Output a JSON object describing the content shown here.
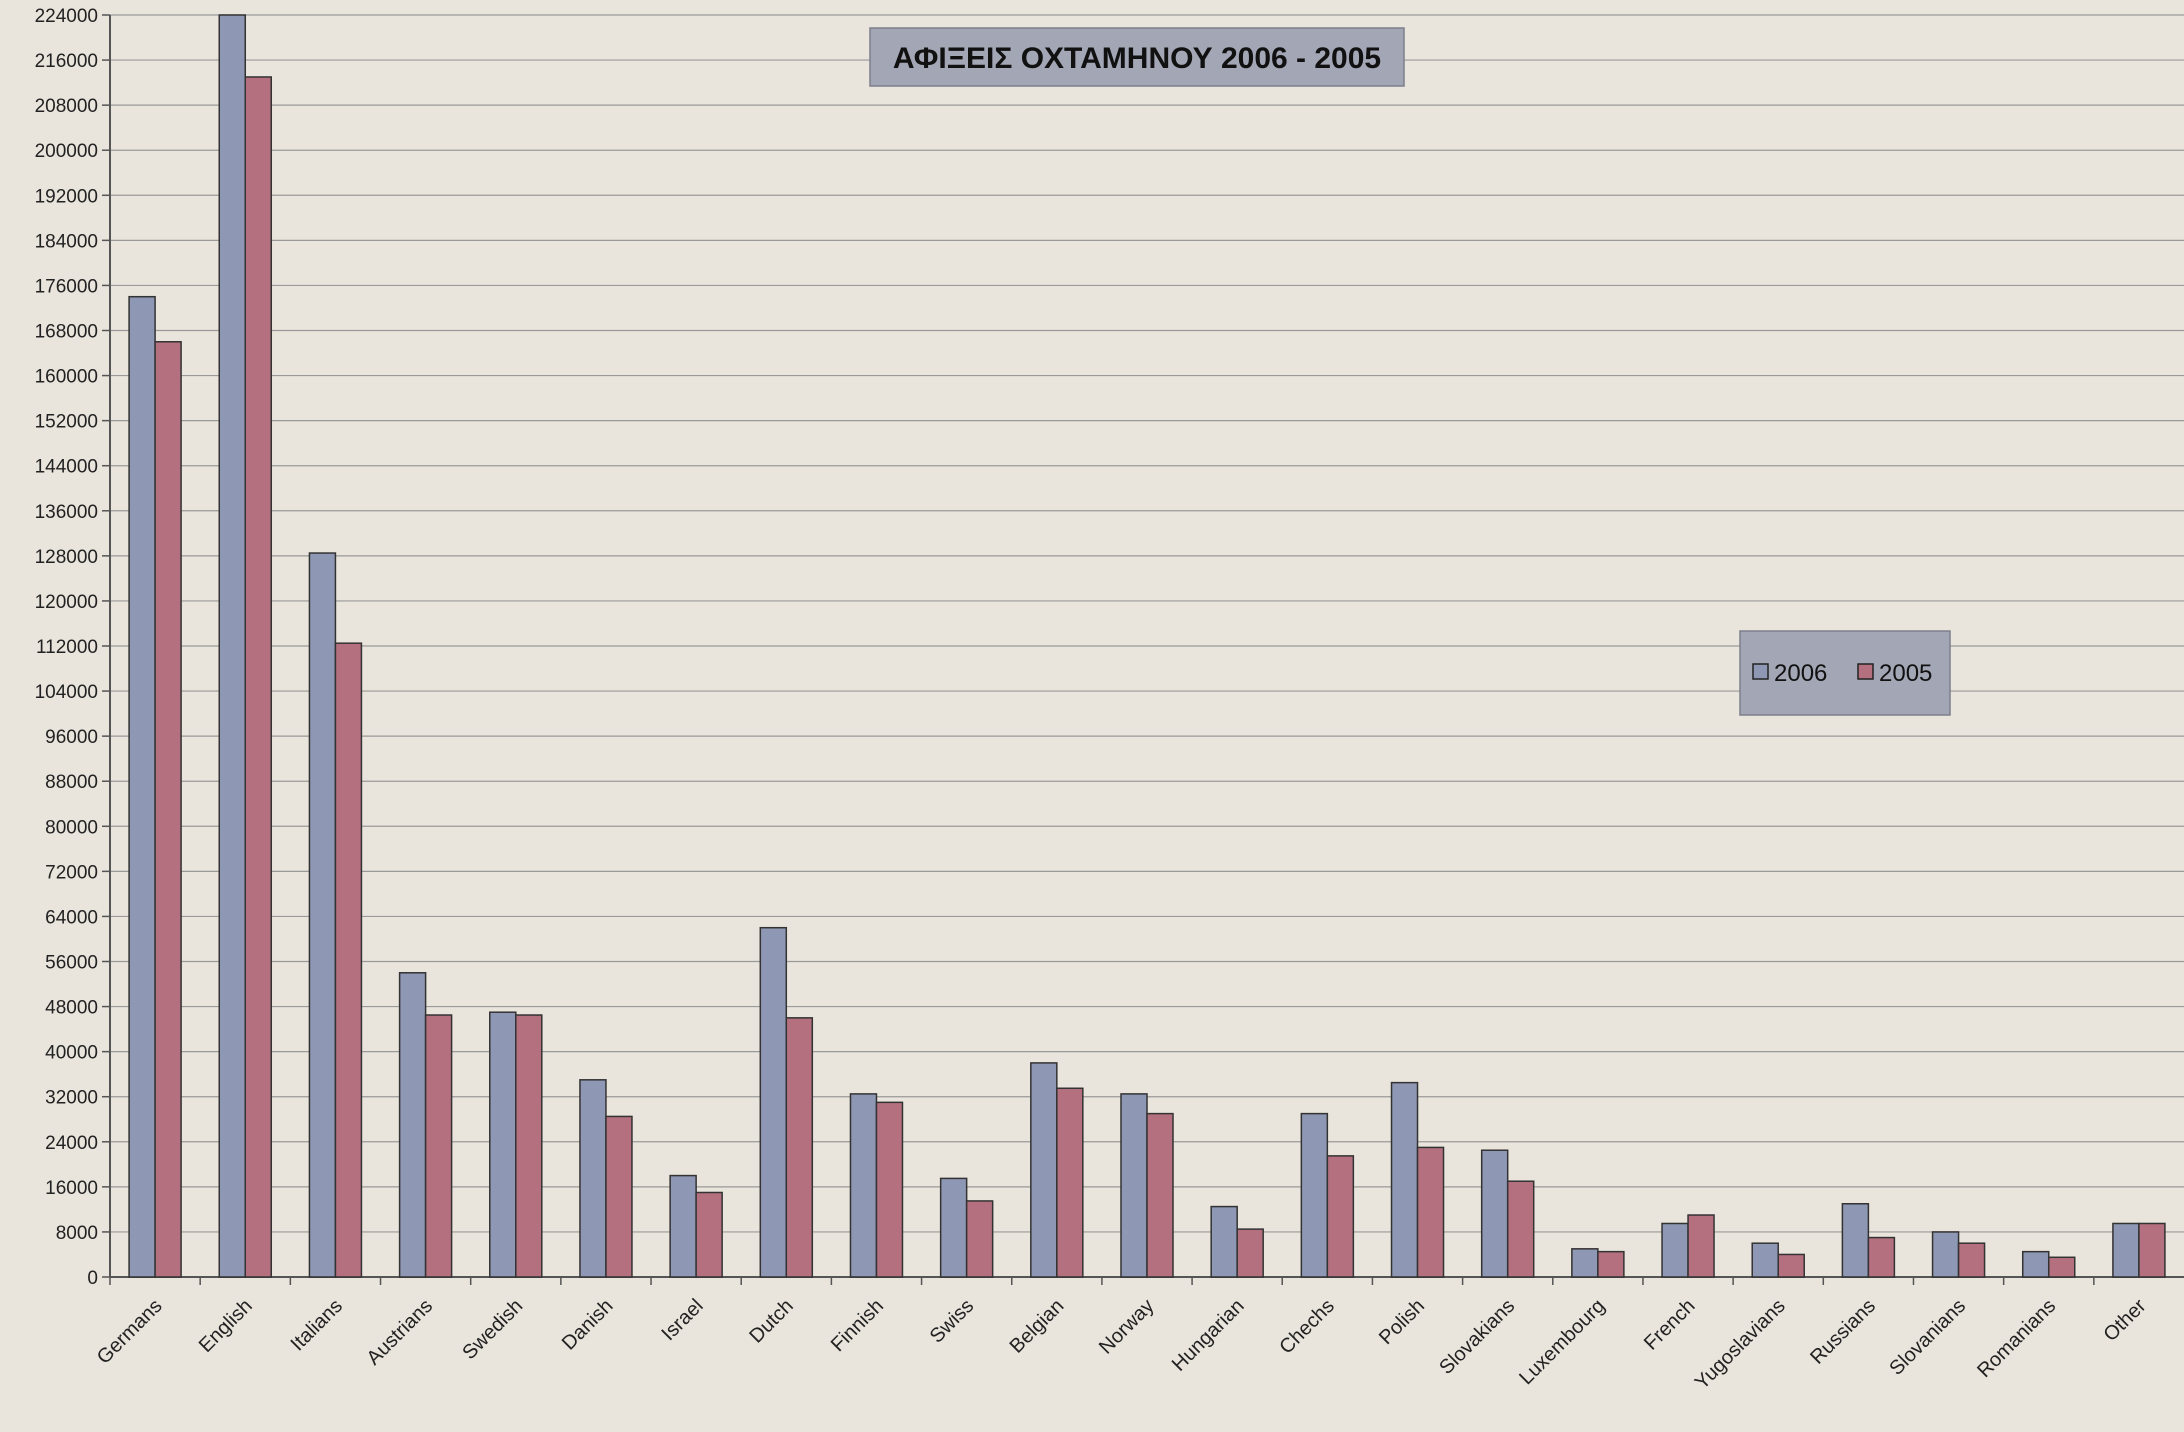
{
  "chart_data": {
    "type": "bar",
    "title": "ΑΦΙΞΕΙΣ ΟΧΤΑΜΗΝΟΥ 2006 - 2005",
    "categories": [
      "Germans",
      "English",
      "Italians",
      "Austrians",
      "Swedish",
      "Danish",
      "Israel",
      "Dutch",
      "Finnish",
      "Swiss",
      "Belgian",
      "Norway",
      "Hungarian",
      "Chechs",
      "Polish",
      "Slovakians",
      "Luxembourg",
      "French",
      "Yugoslavians",
      "Russians",
      "Slovanians",
      "Romanians",
      "Other"
    ],
    "series": [
      {
        "name": "2006",
        "color": "#8e97b3",
        "values": [
          174000,
          224000,
          128500,
          54000,
          47000,
          35000,
          18000,
          62000,
          32500,
          17500,
          38000,
          32500,
          12500,
          29000,
          34500,
          22500,
          5000,
          9500,
          6000,
          13000,
          8000,
          4500,
          9500
        ]
      },
      {
        "name": "2005",
        "color": "#b4707f",
        "values": [
          166000,
          213000,
          112500,
          46500,
          46500,
          28500,
          15000,
          46000,
          31000,
          13500,
          33500,
          29000,
          8500,
          21500,
          23000,
          17000,
          4500,
          11000,
          4000,
          7000,
          6000,
          3500,
          9500
        ]
      }
    ],
    "xlabel": "",
    "ylabel": "",
    "ylim": [
      0,
      224000
    ],
    "yticks": [
      "224000",
      "216000",
      "208000",
      "200000",
      "192000",
      "184000",
      "176000",
      "168000",
      "160000",
      "152000",
      "144000",
      "136000",
      "128000",
      "120000",
      "112000",
      "104000",
      "96000",
      "88000",
      "80000",
      "72000",
      "64000",
      "56000",
      "48000",
      "40000",
      "32000",
      "24000",
      "16000",
      "8000",
      "0"
    ],
    "grid": true,
    "legend_position": "right"
  }
}
